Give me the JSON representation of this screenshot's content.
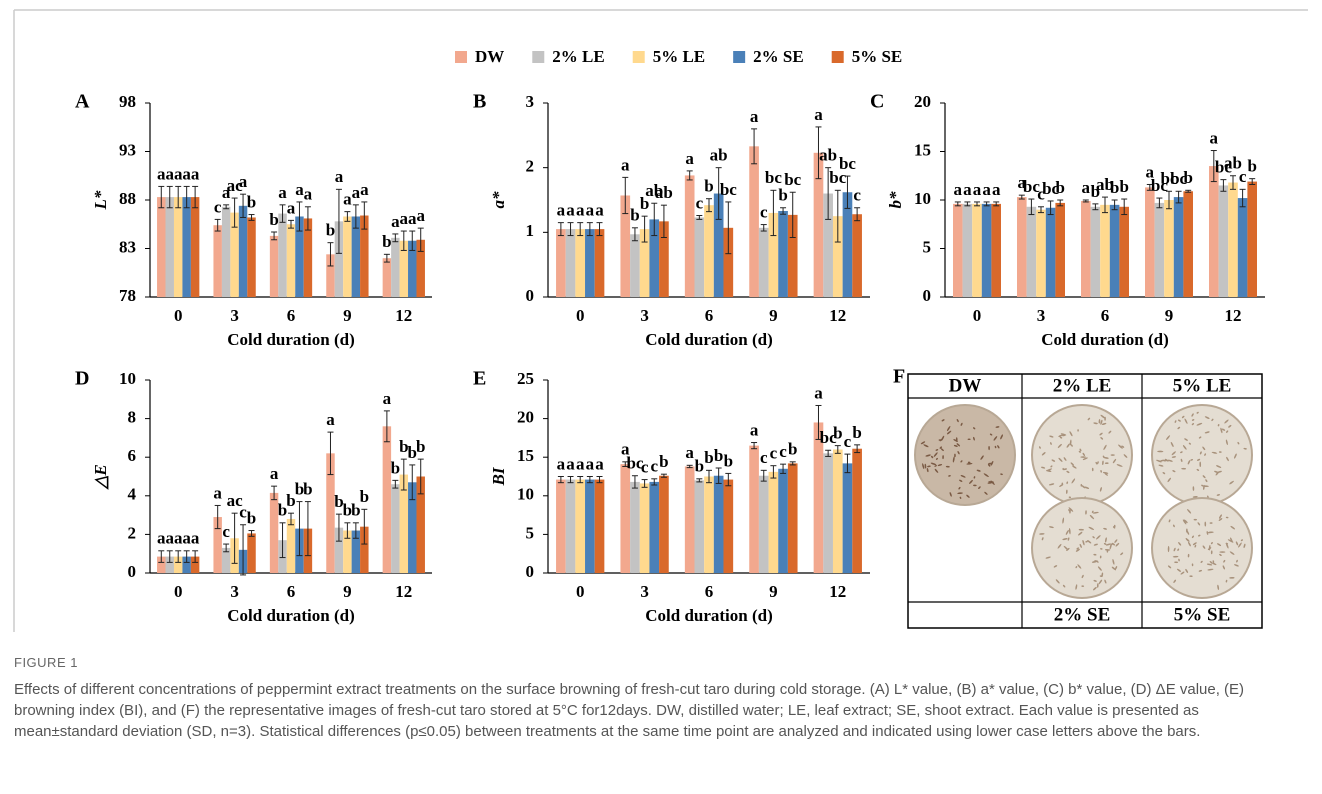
{
  "legend": [
    {
      "name": "DW",
      "color": "#f2a88e"
    },
    {
      "name": "2% LE",
      "color": "#c3c3c3"
    },
    {
      "name": "5% LE",
      "color": "#ffd98e"
    },
    {
      "name": "2% SE",
      "color": "#4a80b8"
    },
    {
      "name": "5% SE",
      "color": "#d9692b"
    }
  ],
  "chart_data": [
    {
      "type": "bar",
      "panel": "A",
      "ylabel": "L*",
      "xlabel": "Cold duration (d)",
      "categories": [
        "0",
        "3",
        "6",
        "9",
        "12"
      ],
      "ylim": [
        78,
        98
      ],
      "yticks": [
        78,
        83,
        88,
        93,
        98
      ],
      "series": [
        {
          "values": [
            88.3,
            85.4,
            84.3,
            82.4,
            82.0
          ],
          "errors": [
            1.1,
            0.6,
            0.4,
            1.2,
            0.4
          ],
          "labels": [
            "a",
            "c",
            "b",
            "b",
            "b"
          ]
        },
        {
          "values": [
            88.3,
            87.3,
            86.6,
            85.8,
            84.1
          ],
          "errors": [
            1.1,
            0.2,
            0.9,
            3.3,
            0.4
          ],
          "labels": [
            "a",
            "a",
            "a",
            "a",
            "a"
          ]
        },
        {
          "values": [
            88.3,
            86.7,
            85.5,
            86.3,
            83.8
          ],
          "errors": [
            1.1,
            1.5,
            0.4,
            0.5,
            1.0
          ],
          "labels": [
            "a",
            "ac",
            "a",
            "a",
            "a"
          ]
        },
        {
          "values": [
            88.3,
            87.4,
            86.3,
            86.3,
            83.8
          ],
          "errors": [
            1.1,
            1.2,
            1.5,
            1.2,
            1.0
          ],
          "labels": [
            "a",
            "a",
            "a",
            "a",
            "a"
          ]
        },
        {
          "values": [
            88.3,
            86.2,
            86.1,
            86.4,
            83.9
          ],
          "errors": [
            1.1,
            0.3,
            1.2,
            1.4,
            1.2
          ],
          "labels": [
            "a",
            "b",
            "a",
            "a",
            "a"
          ]
        }
      ]
    },
    {
      "type": "bar",
      "panel": "B",
      "ylabel": "a*",
      "xlabel": "Cold duration (d)",
      "categories": [
        "0",
        "3",
        "6",
        "9",
        "12"
      ],
      "ylim": [
        0,
        3
      ],
      "yticks": [
        0,
        1,
        2,
        3
      ],
      "series": [
        {
          "values": [
            1.05,
            1.57,
            1.88,
            2.33,
            2.23
          ],
          "errors": [
            0.1,
            0.28,
            0.07,
            0.27,
            0.4
          ],
          "labels": [
            "a",
            "a",
            "a",
            "a",
            "a"
          ]
        },
        {
          "values": [
            1.05,
            0.97,
            1.23,
            1.07,
            1.6
          ],
          "errors": [
            0.1,
            0.1,
            0.03,
            0.05,
            0.4
          ],
          "labels": [
            "a",
            "b",
            "c",
            "c",
            "ab"
          ]
        },
        {
          "values": [
            1.05,
            1.05,
            1.42,
            1.3,
            1.25
          ],
          "errors": [
            0.1,
            0.2,
            0.1,
            0.35,
            0.4
          ],
          "labels": [
            "a",
            "b",
            "b",
            "bc",
            "bc"
          ]
        },
        {
          "values": [
            1.05,
            1.2,
            1.6,
            1.33,
            1.62
          ],
          "errors": [
            0.1,
            0.25,
            0.4,
            0.05,
            0.25
          ],
          "labels": [
            "a",
            "ab",
            "ab",
            "b",
            "bc"
          ]
        },
        {
          "values": [
            1.05,
            1.17,
            1.07,
            1.27,
            1.28
          ],
          "errors": [
            0.1,
            0.25,
            0.4,
            0.35,
            0.1
          ],
          "labels": [
            "a",
            "ab",
            "bc",
            "bc",
            "c"
          ]
        }
      ]
    },
    {
      "type": "bar",
      "panel": "C",
      "ylabel": "b*",
      "xlabel": "Cold duration (d)",
      "categories": [
        "0",
        "3",
        "6",
        "9",
        "12"
      ],
      "ylim": [
        0,
        20
      ],
      "yticks": [
        0,
        5,
        10,
        15,
        20
      ],
      "series": [
        {
          "values": [
            9.6,
            10.3,
            9.9,
            11.3,
            13.5
          ],
          "errors": [
            0.2,
            0.2,
            0.1,
            0.3,
            1.6
          ],
          "labels": [
            "a",
            "a",
            "a",
            "a",
            "a"
          ]
        },
        {
          "values": [
            9.6,
            9.3,
            9.3,
            9.7,
            11.5
          ],
          "errors": [
            0.2,
            0.8,
            0.3,
            0.5,
            0.6
          ],
          "labels": [
            "a",
            "bc",
            "b",
            "bc",
            "bc"
          ]
        },
        {
          "values": [
            9.6,
            9.0,
            9.5,
            10.0,
            11.8
          ],
          "errors": [
            0.2,
            0.3,
            0.8,
            0.9,
            0.7
          ],
          "labels": [
            "a",
            "c",
            "ab",
            "bc",
            "ab"
          ]
        },
        {
          "values": [
            9.6,
            9.2,
            9.5,
            10.3,
            10.2
          ],
          "errors": [
            0.2,
            0.7,
            0.5,
            0.6,
            0.9
          ],
          "labels": [
            "a",
            "bc",
            "b",
            "bc",
            "c"
          ]
        },
        {
          "values": [
            9.6,
            9.7,
            9.3,
            10.9,
            11.9
          ],
          "errors": [
            0.2,
            0.3,
            0.8,
            0.1,
            0.3
          ],
          "labels": [
            "a",
            "b",
            "b",
            "b",
            "b"
          ]
        }
      ]
    },
    {
      "type": "bar",
      "panel": "D",
      "ylabel": "△E",
      "xlabel": "Cold duration (d)",
      "categories": [
        "0",
        "3",
        "6",
        "9",
        "12"
      ],
      "ylim": [
        0,
        10
      ],
      "yticks": [
        0,
        2,
        4,
        6,
        8,
        10
      ],
      "series": [
        {
          "values": [
            0.85,
            2.9,
            4.15,
            6.2,
            7.6
          ],
          "errors": [
            0.3,
            0.6,
            0.35,
            1.1,
            0.8
          ],
          "labels": [
            "a",
            "a",
            "a",
            "a",
            "a"
          ]
        },
        {
          "values": [
            0.85,
            1.3,
            1.7,
            2.35,
            4.6
          ],
          "errors": [
            0.3,
            0.2,
            0.9,
            0.7,
            0.2
          ],
          "labels": [
            "a",
            "c",
            "b",
            "b",
            "b"
          ]
        },
        {
          "values": [
            0.85,
            1.8,
            2.8,
            2.2,
            5.1
          ],
          "errors": [
            0.3,
            1.3,
            0.3,
            0.4,
            0.8
          ],
          "labels": [
            "a",
            "ac",
            "b",
            "b",
            "b"
          ]
        },
        {
          "values": [
            0.85,
            1.2,
            2.3,
            2.2,
            4.7
          ],
          "errors": [
            0.3,
            1.3,
            1.4,
            0.4,
            0.9
          ],
          "labels": [
            "a",
            "c",
            "b",
            "b",
            "b"
          ]
        },
        {
          "values": [
            0.85,
            2.05,
            2.3,
            2.4,
            5.0
          ],
          "errors": [
            0.3,
            0.15,
            1.4,
            0.9,
            0.9
          ],
          "labels": [
            "a",
            "b",
            "b",
            "b",
            "b"
          ]
        }
      ]
    },
    {
      "type": "bar",
      "panel": "E",
      "ylabel": "BI",
      "xlabel": "Cold duration (d)",
      "categories": [
        "0",
        "3",
        "6",
        "9",
        "12"
      ],
      "ylim": [
        0,
        25
      ],
      "yticks": [
        0,
        5,
        10,
        15,
        20,
        25
      ],
      "series": [
        {
          "values": [
            12.1,
            14.1,
            13.8,
            16.5,
            19.5
          ],
          "errors": [
            0.4,
            0.3,
            0.15,
            0.4,
            2.2
          ],
          "labels": [
            "a",
            "a",
            "a",
            "a",
            "a"
          ]
        },
        {
          "values": [
            12.1,
            11.8,
            12.0,
            12.6,
            15.5
          ],
          "errors": [
            0.4,
            0.8,
            0.2,
            0.7,
            0.4
          ],
          "labels": [
            "a",
            "bc",
            "b",
            "c",
            "bc"
          ]
        },
        {
          "values": [
            12.1,
            11.6,
            12.5,
            13.1,
            16.0
          ],
          "errors": [
            0.4,
            0.5,
            0.8,
            0.8,
            0.5
          ],
          "labels": [
            "a",
            "c",
            "b",
            "c",
            "b"
          ]
        },
        {
          "values": [
            12.1,
            11.8,
            12.6,
            13.5,
            14.2
          ],
          "errors": [
            0.4,
            0.4,
            1.0,
            0.6,
            1.2
          ],
          "labels": [
            "a",
            "c",
            "b",
            "c",
            "c"
          ]
        },
        {
          "values": [
            12.1,
            12.6,
            12.1,
            14.2,
            16.1
          ],
          "errors": [
            0.4,
            0.2,
            0.8,
            0.2,
            0.5
          ],
          "labels": [
            "a",
            "b",
            "b",
            "b",
            "b"
          ]
        }
      ]
    }
  ],
  "photos": {
    "panel": "F",
    "top": [
      "DW",
      "2% LE",
      "5% LE"
    ],
    "bottom": [
      "2% SE",
      "5% SE"
    ]
  },
  "caption": {
    "label": "FIGURE 1",
    "text": "Effects of different concentrations of peppermint extract treatments on the surface browning of fresh-cut taro during cold storage. (A) L* value, (B) a* value, (C) b* value, (D) ΔE value, (E) browning index (BI), and (F) the representative images of fresh-cut taro stored at 5°C for12days. DW, distilled water; LE, leaf extract; SE, shoot extract. Each value is presented as mean±standard deviation (SD, n=3). Statistical differences (p≤0.05) between treatments at the same time point are analyzed and indicated using lower case letters above the bars."
  }
}
